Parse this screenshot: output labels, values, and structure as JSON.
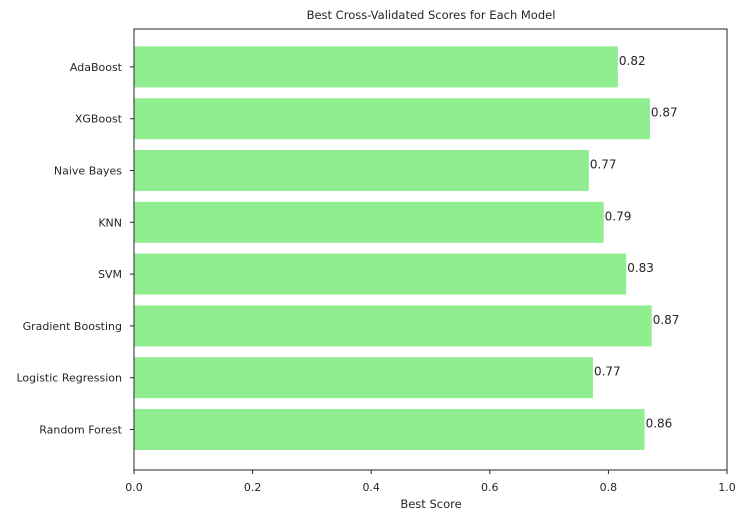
{
  "chart_data": {
    "type": "bar",
    "orientation": "horizontal",
    "title": "Best Cross-Validated Scores for Each Model",
    "xlabel": "Best Score",
    "ylabel": "",
    "xlim": [
      0,
      1.0
    ],
    "x_ticks": [
      0,
      0.2,
      0.4,
      0.6,
      0.8,
      1.0
    ],
    "x_tick_labels": [
      "0.0",
      "0.2",
      "0.4",
      "0.6",
      "0.8",
      "1.0"
    ],
    "categories": [
      "Random Forest",
      "Logistic Regression",
      "Gradient Boosting",
      "SVM",
      "KNN",
      "Naive Bayes",
      "XGBoost",
      "AdaBoost"
    ],
    "values": [
      0.861,
      0.774,
      0.873,
      0.83,
      0.792,
      0.767,
      0.87,
      0.816
    ],
    "data_labels": [
      "0.86",
      "0.77",
      "0.87",
      "0.83",
      "0.79",
      "0.77",
      "0.87",
      "0.82"
    ],
    "bar_color": "#90ee90",
    "grid": false,
    "legend": "none"
  }
}
